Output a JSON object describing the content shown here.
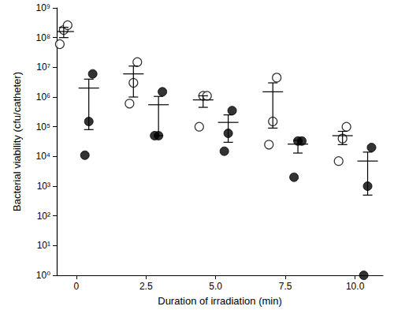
{
  "chart_data": {
    "type": "scatter",
    "x_label": "Duration of irradiation (min)",
    "y_label": "Bacterial viability (cfu/catheter)",
    "x": [
      0,
      2.5,
      5,
      7.5,
      10
    ],
    "xlim": [
      -0.7,
      11
    ],
    "xticks": [
      0,
      2.5,
      {
        "value": 5,
        "label": "5.0"
      },
      7.5,
      {
        "value": 10,
        "label": "10.0"
      }
    ],
    "ylim": [
      1,
      1000000000
    ],
    "yticks": [
      {
        "value": 1,
        "label": "10⁰"
      },
      {
        "value": 10,
        "label": "10¹"
      },
      {
        "value": 100,
        "label": "10²"
      },
      {
        "value": 1000,
        "label": "10³"
      },
      {
        "value": 10000,
        "label": "10⁴"
      },
      {
        "value": 100000,
        "label": "10⁵"
      },
      {
        "value": 1000000,
        "label": "10⁶"
      },
      {
        "value": 10000000,
        "label": "10⁷"
      },
      {
        "value": 100000000,
        "label": "10⁸"
      },
      {
        "value": 1000000000,
        "label": "10⁹"
      }
    ],
    "log": "y",
    "grid": false,
    "series": [
      {
        "marker": "open circle",
        "color": "#000000",
        "values": [
          [
            60000000,
            180000000,
            260000000
          ],
          [
            600000,
            3000000,
            15000000
          ],
          [
            100000,
            1100000,
            1100000
          ],
          [
            25000,
            150000,
            4500000
          ],
          [
            7000,
            40000,
            100000
          ]
        ],
        "mean": [
          160000000,
          6000000,
          800000,
          1500000,
          50000
        ],
        "error_bars": [
          [
            100000000,
            220000000
          ],
          [
            1000000,
            11000000
          ],
          [
            450000,
            1100000
          ],
          [
            90000,
            3000000
          ],
          [
            25000,
            70000
          ]
        ]
      },
      {
        "marker": "filled circle",
        "color": "#000000",
        "values": [
          [
            11000,
            150000,
            6000000
          ],
          [
            50000,
            50000,
            1500000
          ],
          [
            15000,
            60000,
            350000
          ],
          [
            2000,
            33000,
            33000
          ],
          [
            1,
            1000,
            20000
          ]
        ],
        "mean": [
          2000000,
          550000,
          140000,
          26000,
          7000
        ],
        "error_bars": [
          [
            80000,
            4000000
          ],
          [
            50000,
            1050000
          ],
          [
            30000,
            250000
          ],
          [
            13000,
            35000
          ],
          [
            500,
            14000
          ]
        ]
      }
    ]
  }
}
